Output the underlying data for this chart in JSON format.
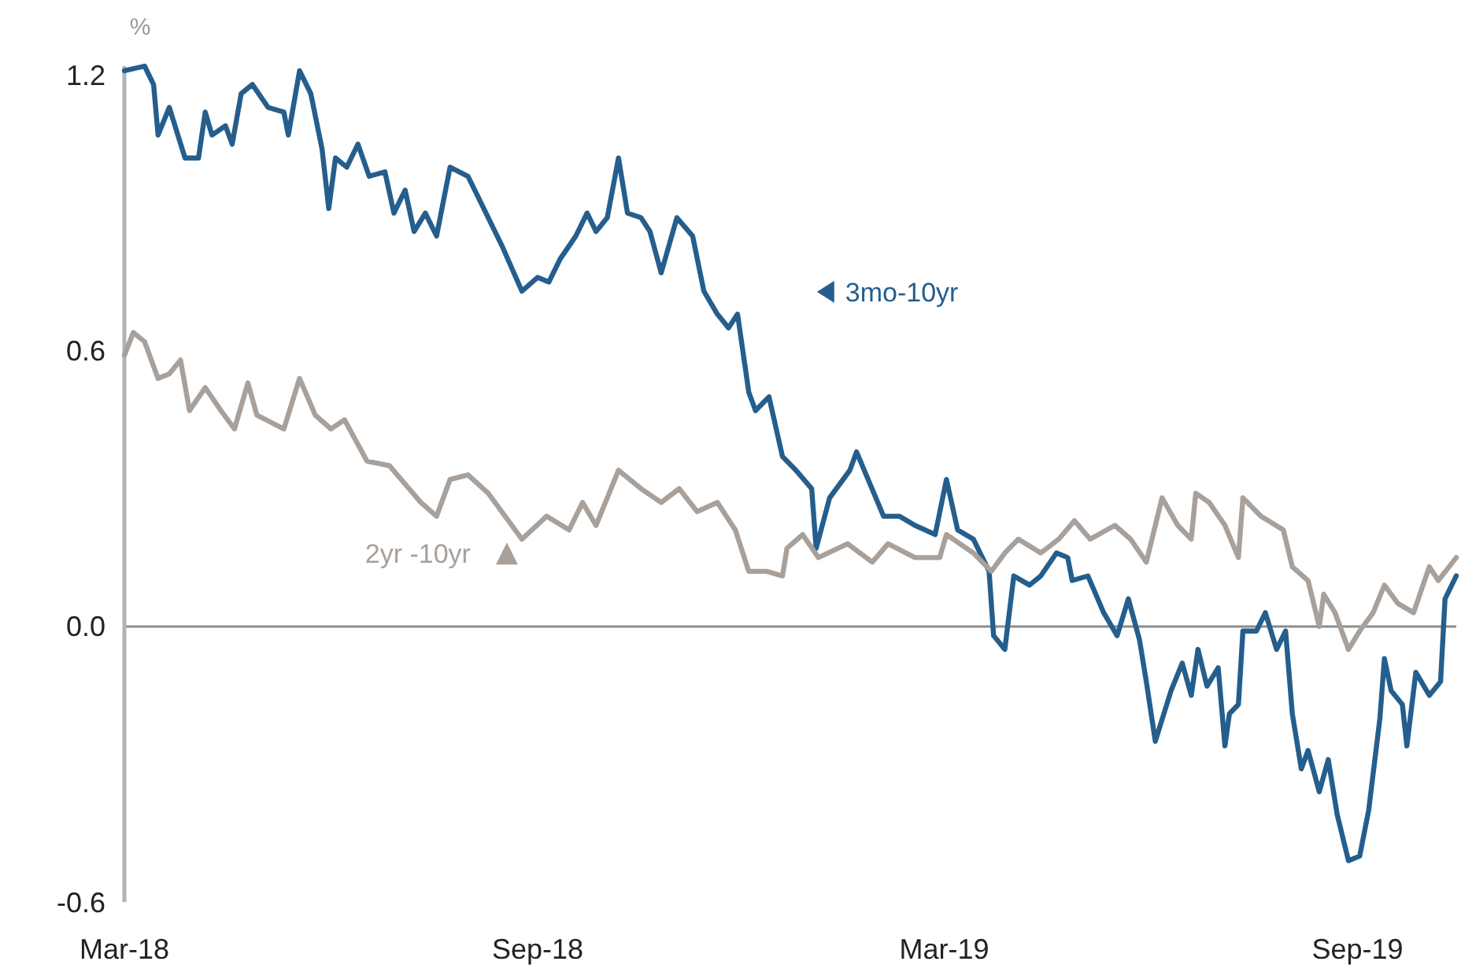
{
  "chart_data": {
    "type": "line",
    "ylabel": "%",
    "xlim": [
      "2018-03-01",
      "2019-10-15"
    ],
    "xticks": [
      {
        "value": "2018-03-01",
        "label": "Mar-18"
      },
      {
        "value": "2018-09-01",
        "label": "Sep-18"
      },
      {
        "value": "2019-03-01",
        "label": "Mar-19"
      },
      {
        "value": "2019-09-01",
        "label": "Sep-19"
      }
    ],
    "ylim": [
      -0.6,
      1.22
    ],
    "yticks": [
      {
        "value": -0.6,
        "label": "-0.6"
      },
      {
        "value": 0,
        "label": "0.0"
      },
      {
        "value": 0.6,
        "label": "0.6"
      },
      {
        "value": 1.2,
        "label": "1.2"
      }
    ],
    "grid": false,
    "legend": "top",
    "marker": "none",
    "line_style": "solid",
    "ref_lines": [
      {
        "axis": "y",
        "value": 0,
        "color": "#8c8c8c"
      }
    ],
    "series": [
      {
        "name": "3mo-10yr",
        "color": "#255e8c",
        "x": [
          "2018-03-01",
          "2018-03-10",
          "2018-03-14",
          "2018-03-16",
          "2018-03-21",
          "2018-03-28",
          "2018-04-03",
          "2018-04-06",
          "2018-04-09",
          "2018-04-15",
          "2018-04-18",
          "2018-04-22",
          "2018-04-27",
          "2018-05-04",
          "2018-05-11",
          "2018-05-13",
          "2018-05-18",
          "2018-05-23",
          "2018-05-28",
          "2018-05-31",
          "2018-06-03",
          "2018-06-08",
          "2018-06-13",
          "2018-06-18",
          "2018-06-25",
          "2018-06-29",
          "2018-07-04",
          "2018-07-08",
          "2018-07-13",
          "2018-07-18",
          "2018-07-24",
          "2018-08-01",
          "2018-08-05",
          "2018-08-10",
          "2018-08-16",
          "2018-08-25",
          "2018-09-01",
          "2018-09-06",
          "2018-09-11",
          "2018-09-18",
          "2018-09-23",
          "2018-09-27",
          "2018-10-02",
          "2018-10-07",
          "2018-10-11",
          "2018-10-17",
          "2018-10-21",
          "2018-10-26",
          "2018-11-02",
          "2018-11-09",
          "2018-11-14",
          "2018-11-20",
          "2018-11-25",
          "2018-11-29",
          "2018-12-04",
          "2018-12-07",
          "2018-12-13",
          "2018-12-19",
          "2018-12-25",
          "2019-01-01",
          "2019-01-03",
          "2019-01-09",
          "2019-01-18",
          "2019-01-21",
          "2019-02-02",
          "2019-02-09",
          "2019-02-16",
          "2019-02-25",
          "2019-03-02",
          "2019-03-07",
          "2019-03-14",
          "2019-03-21",
          "2019-03-23",
          "2019-03-28",
          "2019-04-01",
          "2019-04-08",
          "2019-04-13",
          "2019-04-20",
          "2019-04-25",
          "2019-04-27",
          "2019-05-04",
          "2019-05-11",
          "2019-05-17",
          "2019-05-22",
          "2019-05-27",
          "2019-05-30",
          "2019-06-03",
          "2019-06-10",
          "2019-06-15",
          "2019-06-19",
          "2019-06-22",
          "2019-06-26",
          "2019-07-01",
          "2019-07-04",
          "2019-07-06",
          "2019-07-10",
          "2019-07-12",
          "2019-07-18",
          "2019-07-22",
          "2019-07-27",
          "2019-07-31",
          "2019-08-03",
          "2019-08-07",
          "2019-08-10",
          "2019-08-15",
          "2019-08-19",
          "2019-08-23",
          "2019-08-28",
          "2019-09-02",
          "2019-09-06",
          "2019-09-11",
          "2019-09-13",
          "2019-09-16",
          "2019-09-21",
          "2019-09-23",
          "2019-09-27",
          "2019-10-03",
          "2019-10-08",
          "2019-10-10",
          "2019-10-15"
        ],
        "values": [
          1.21,
          1.22,
          1.18,
          1.07,
          1.13,
          1.02,
          1.02,
          1.12,
          1.07,
          1.09,
          1.05,
          1.16,
          1.18,
          1.13,
          1.12,
          1.07,
          1.21,
          1.16,
          1.04,
          0.91,
          1.02,
          1.0,
          1.05,
          0.98,
          0.99,
          0.9,
          0.95,
          0.86,
          0.9,
          0.85,
          1.0,
          0.98,
          0.94,
          0.89,
          0.83,
          0.73,
          0.76,
          0.75,
          0.8,
          0.85,
          0.9,
          0.86,
          0.89,
          1.02,
          0.9,
          0.89,
          0.86,
          0.77,
          0.89,
          0.85,
          0.73,
          0.68,
          0.65,
          0.68,
          0.51,
          0.47,
          0.5,
          0.37,
          0.34,
          0.3,
          0.17,
          0.28,
          0.34,
          0.38,
          0.24,
          0.24,
          0.22,
          0.2,
          0.32,
          0.21,
          0.19,
          0.12,
          -0.02,
          -0.05,
          0.11,
          0.09,
          0.11,
          0.16,
          0.15,
          0.1,
          0.11,
          0.03,
          -0.02,
          0.06,
          -0.03,
          -0.12,
          -0.25,
          -0.14,
          -0.08,
          -0.15,
          -0.05,
          -0.13,
          -0.09,
          -0.26,
          -0.19,
          -0.17,
          -0.01,
          -0.01,
          0.03,
          -0.05,
          -0.01,
          -0.19,
          -0.31,
          -0.27,
          -0.36,
          -0.29,
          -0.41,
          -0.51,
          -0.5,
          -0.4,
          -0.2,
          -0.07,
          -0.14,
          -0.17,
          -0.26,
          -0.1,
          -0.15,
          -0.12,
          0.06,
          0.11
        ]
      },
      {
        "name": "2yr -10yr",
        "color": "#a8a09a",
        "x": [
          "2018-03-01",
          "2018-03-05",
          "2018-03-10",
          "2018-03-16",
          "2018-03-21",
          "2018-03-26",
          "2018-03-30",
          "2018-04-06",
          "2018-04-13",
          "2018-04-19",
          "2018-04-25",
          "2018-04-29",
          "2018-05-11",
          "2018-05-18",
          "2018-05-25",
          "2018-06-01",
          "2018-06-07",
          "2018-06-17",
          "2018-06-27",
          "2018-07-04",
          "2018-07-11",
          "2018-07-18",
          "2018-07-24",
          "2018-08-01",
          "2018-08-10",
          "2018-08-19",
          "2018-08-25",
          "2018-09-05",
          "2018-09-15",
          "2018-09-21",
          "2018-09-27",
          "2018-10-07",
          "2018-10-17",
          "2018-10-26",
          "2018-11-03",
          "2018-11-11",
          "2018-11-20",
          "2018-11-28",
          "2018-12-04",
          "2018-12-12",
          "2018-12-19",
          "2018-12-21",
          "2018-12-28",
          "2019-01-04",
          "2019-01-17",
          "2019-01-28",
          "2019-02-04",
          "2019-02-16",
          "2019-02-27",
          "2019-03-02",
          "2019-03-14",
          "2019-03-22",
          "2019-03-28",
          "2019-04-03",
          "2019-04-13",
          "2019-04-21",
          "2019-04-28",
          "2019-05-05",
          "2019-05-16",
          "2019-05-23",
          "2019-05-30",
          "2019-06-06",
          "2019-06-13",
          "2019-06-19",
          "2019-06-21",
          "2019-06-27",
          "2019-07-04",
          "2019-07-10",
          "2019-07-12",
          "2019-07-20",
          "2019-07-30",
          "2019-08-03",
          "2019-08-10",
          "2019-08-15",
          "2019-08-17",
          "2019-08-22",
          "2019-08-28",
          "2019-09-02",
          "2019-09-08",
          "2019-09-13",
          "2019-09-19",
          "2019-09-26",
          "2019-10-03",
          "2019-10-07",
          "2019-10-15"
        ],
        "values": [
          0.59,
          0.64,
          0.62,
          0.54,
          0.55,
          0.58,
          0.47,
          0.52,
          0.47,
          0.43,
          0.53,
          0.46,
          0.43,
          0.54,
          0.46,
          0.43,
          0.45,
          0.36,
          0.35,
          0.31,
          0.27,
          0.24,
          0.32,
          0.33,
          0.29,
          0.23,
          0.19,
          0.24,
          0.21,
          0.27,
          0.22,
          0.34,
          0.3,
          0.27,
          0.3,
          0.25,
          0.27,
          0.21,
          0.12,
          0.12,
          0.11,
          0.17,
          0.2,
          0.15,
          0.18,
          0.14,
          0.18,
          0.15,
          0.15,
          0.2,
          0.16,
          0.12,
          0.16,
          0.19,
          0.16,
          0.19,
          0.23,
          0.19,
          0.22,
          0.19,
          0.14,
          0.28,
          0.22,
          0.19,
          0.29,
          0.27,
          0.22,
          0.15,
          0.28,
          0.24,
          0.21,
          0.13,
          0.1,
          0.0,
          0.07,
          0.03,
          -0.05,
          -0.01,
          0.03,
          0.09,
          0.05,
          0.03,
          0.13,
          0.1,
          0.15
        ]
      }
    ]
  }
}
